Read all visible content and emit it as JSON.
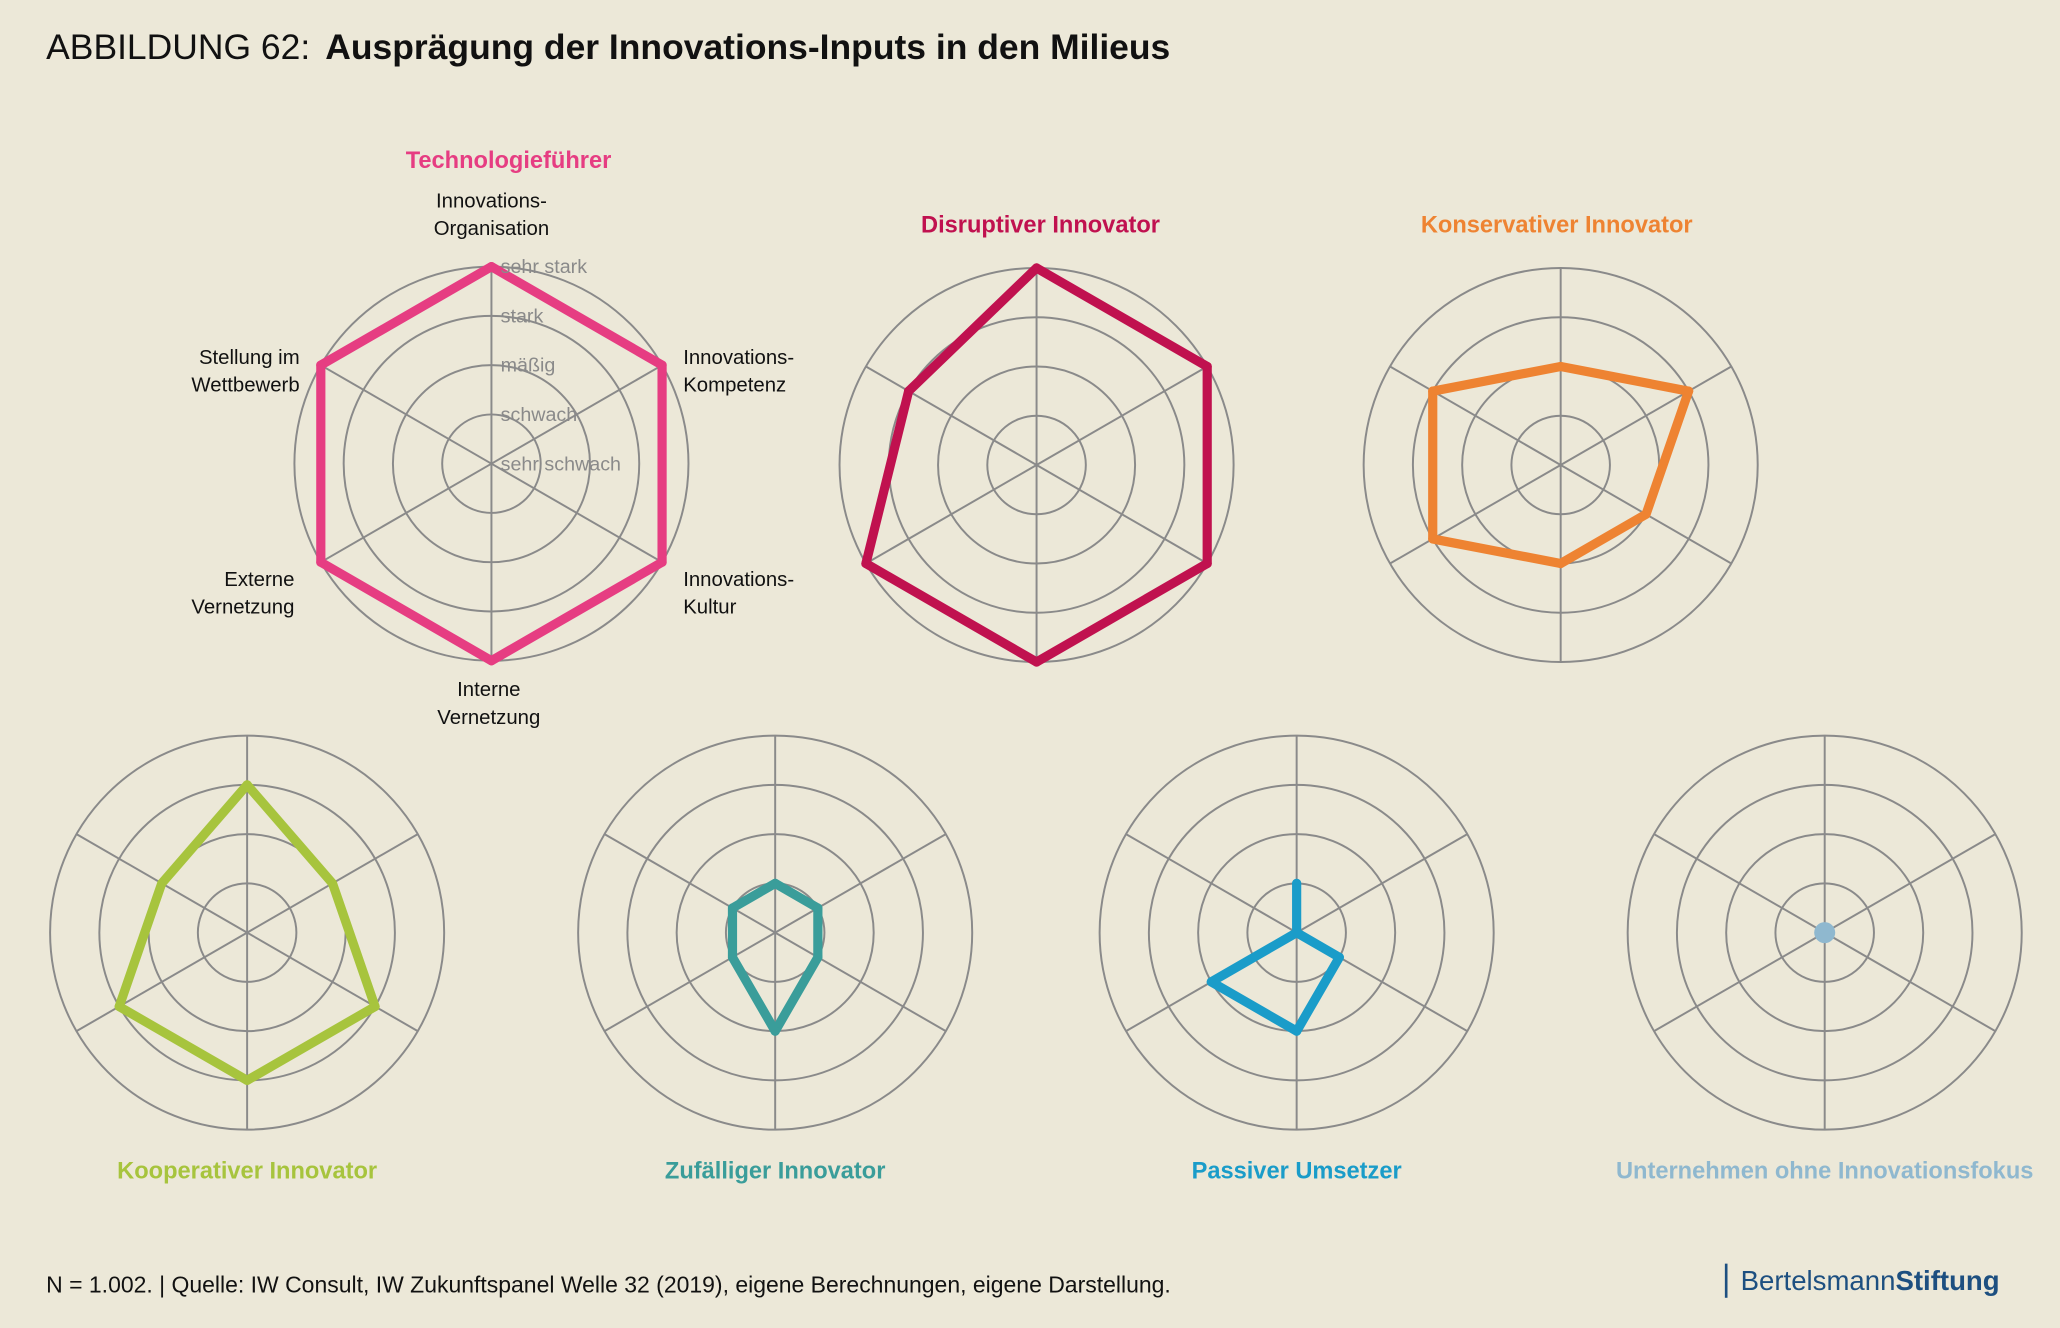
{
  "header": {
    "prefix": "ABBILDUNG 62:",
    "title": "Ausprägung der Innovations-Inputs in den Milieus"
  },
  "chart_data": {
    "type": "radar",
    "axes": [
      [
        "Innovations-",
        "Organisation"
      ],
      [
        "Innovations-",
        "Kompetenz"
      ],
      [
        "Innovations-",
        "Kultur"
      ],
      [
        "Interne",
        "Vernetzung"
      ],
      [
        "Externe",
        "Vernetzung"
      ],
      [
        "Stellung im",
        "Wettbewerb"
      ]
    ],
    "levels": [
      "sehr schwach",
      "schwach",
      "mäßig",
      "stark",
      "sehr stark"
    ],
    "range": [
      0,
      4
    ],
    "series": [
      {
        "name": "Technologieführer",
        "color": "#e63d82",
        "values": [
          4,
          4,
          4,
          4,
          4,
          4
        ]
      },
      {
        "name": "Disruptiver Innovator",
        "color": "#c0114f",
        "values": [
          4,
          4,
          4,
          4,
          4,
          3
        ]
      },
      {
        "name": "Konservativer Innovator",
        "color": "#ee8332",
        "values": [
          2,
          3,
          2,
          2,
          3,
          3
        ]
      },
      {
        "name": "Kooperativer Innovator",
        "color": "#a7c43d",
        "values": [
          3,
          2,
          3,
          3,
          3,
          2
        ]
      },
      {
        "name": "Zufälliger Innovator",
        "color": "#3a9d9a",
        "values": [
          1,
          1,
          1,
          2,
          1,
          1
        ]
      },
      {
        "name": "Passiver Umsetzer",
        "color": "#1a9cc9",
        "values": [
          1,
          0,
          1,
          2,
          2,
          0
        ]
      },
      {
        "name": "Unternehmen ohne Innovationsfokus",
        "color": "#8fb8cf",
        "values": [
          0,
          0,
          0,
          0,
          0,
          0
        ]
      }
    ]
  },
  "footer": {
    "source": "N = 1.002. | Quelle: IW Consult, IW Zukunftspanel Welle 32 (2019), eigene Berechnungen, eigene Darstellung.",
    "logo_light": "Bertelsmann",
    "logo_bold": "Stiftung"
  }
}
